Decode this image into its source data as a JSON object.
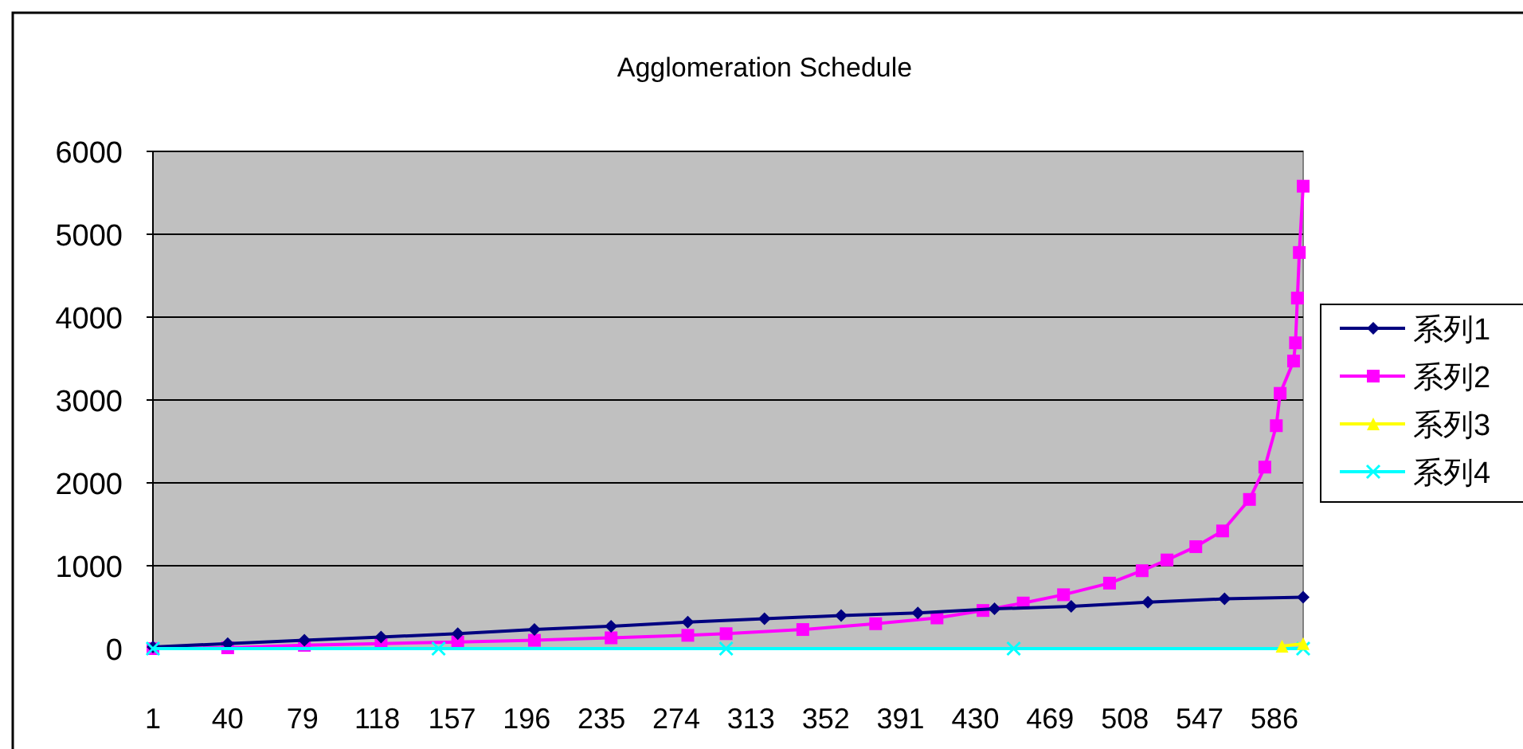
{
  "chart_data": {
    "type": "line",
    "title": "Agglomeration Schedule",
    "xlim": [
      1,
      601
    ],
    "xticks": [
      1,
      40,
      79,
      118,
      157,
      196,
      235,
      274,
      313,
      352,
      391,
      430,
      469,
      508,
      547,
      586
    ],
    "ylim": [
      0,
      6000
    ],
    "yticks": [
      0,
      1000,
      2000,
      3000,
      4000,
      5000,
      6000
    ],
    "grid": "y",
    "legend": "right",
    "series": [
      {
        "name": "系列1",
        "color": "#000080",
        "marker": "diamond",
        "x": [
          1,
          40,
          80,
          120,
          160,
          200,
          240,
          280,
          320,
          360,
          400,
          440,
          480,
          520,
          560,
          601
        ],
        "values": [
          20,
          60,
          100,
          140,
          180,
          230,
          270,
          320,
          360,
          400,
          430,
          480,
          510,
          560,
          600,
          620
        ]
      },
      {
        "name": "系列2",
        "color": "#ff00ff",
        "marker": "square",
        "x": [
          1,
          40,
          80,
          120,
          160,
          200,
          240,
          280,
          300,
          340,
          378,
          410,
          434,
          455,
          476,
          500,
          517,
          530,
          545,
          559,
          573,
          581,
          587,
          589,
          596,
          597,
          598,
          599,
          601
        ],
        "values": [
          0,
          10,
          40,
          60,
          80,
          100,
          130,
          160,
          180,
          230,
          300,
          370,
          460,
          550,
          650,
          790,
          940,
          1070,
          1230,
          1420,
          1800,
          2190,
          2690,
          3080,
          3470,
          3690,
          4230,
          4780,
          5580
        ]
      },
      {
        "name": "系列3",
        "color": "#ffff00",
        "marker": "triangle",
        "x": [
          590,
          601
        ],
        "values": [
          30,
          60
        ]
      },
      {
        "name": "系列4",
        "color": "#00ffff",
        "marker": "cross",
        "x": [
          1,
          150,
          300,
          450,
          601
        ],
        "values": [
          0,
          0,
          0,
          0,
          0
        ]
      }
    ]
  }
}
